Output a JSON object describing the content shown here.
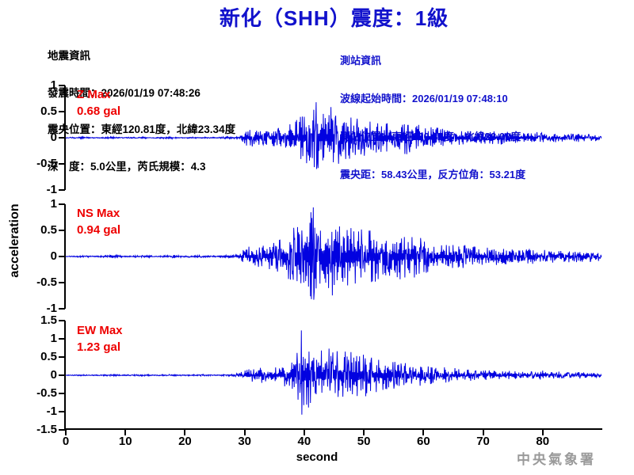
{
  "title": "新化（SHH）震度：1級",
  "earthquake_info": {
    "heading": "地震資訊",
    "origin_time": "發震時間：2026/01/19 07:48:26",
    "epicenter": "震央位置：東經120.81度，北緯23.34度",
    "depth_magnitude": "深　度：5.0公里，芮氏規模：4.3"
  },
  "station_info": {
    "heading": "測站資訊",
    "wave_start_time": "波線起始時間：2026/01/19 07:48:10",
    "station_location": "測站位置：東經120.35度，北緯23.02度",
    "distance_azimuth": "震央距：58.43公里，反方位角：53.21度"
  },
  "footer": {
    "agency": "中央氣象署"
  },
  "colors": {
    "title_blue": "#1212CC",
    "station_blue": "#1212CC",
    "trace_blue": "#0202E0",
    "max_red": "#EE0000",
    "axis_black": "#000000",
    "agency_gray": "#9A9A9A"
  },
  "chart_data": {
    "type": "line",
    "title": "新化（SHH）震度：1級",
    "xlabel": "second",
    "ylabel": "acceleration",
    "x_range": [
      0,
      90
    ],
    "x_ticks": [
      0,
      10,
      20,
      30,
      40,
      50,
      60,
      70,
      80
    ],
    "grid": false,
    "series": [
      {
        "name": "Z",
        "max_label": "Z Max",
        "max_text": "0.68 gal",
        "max_value": 0.68,
        "max_time_s": 42,
        "ylim": [
          -1,
          1
        ],
        "y_ticks": [
          1,
          0.5,
          0,
          -0.5,
          -1
        ],
        "envelope": [
          [
            0,
            0.006
          ],
          [
            3,
            0.02
          ],
          [
            4,
            0.008
          ],
          [
            8,
            0.022
          ],
          [
            9,
            0.008
          ],
          [
            13,
            0.02
          ],
          [
            14,
            0.008
          ],
          [
            18,
            0.022
          ],
          [
            19,
            0.008
          ],
          [
            23,
            0.02
          ],
          [
            24,
            0.01
          ],
          [
            28,
            0.025
          ],
          [
            29.3,
            0.04
          ],
          [
            29.8,
            0.15
          ],
          [
            31,
            0.17
          ],
          [
            33,
            0.15
          ],
          [
            35,
            0.18
          ],
          [
            37,
            0.25
          ],
          [
            39,
            0.38
          ],
          [
            40.5,
            0.5
          ],
          [
            42,
            0.68
          ],
          [
            43,
            0.48
          ],
          [
            44.5,
            0.6
          ],
          [
            46,
            0.5
          ],
          [
            47.5,
            0.42
          ],
          [
            49,
            0.45
          ],
          [
            51,
            0.35
          ],
          [
            53,
            0.3
          ],
          [
            55,
            0.26
          ],
          [
            57,
            0.32
          ],
          [
            59,
            0.28
          ],
          [
            61,
            0.22
          ],
          [
            63,
            0.18
          ],
          [
            65,
            0.15
          ],
          [
            67,
            0.13
          ],
          [
            69,
            0.12
          ],
          [
            71,
            0.12
          ],
          [
            73,
            0.13
          ],
          [
            75,
            0.1
          ],
          [
            77,
            0.09
          ],
          [
            79,
            0.11
          ],
          [
            81,
            0.08
          ],
          [
            83,
            0.09
          ],
          [
            85,
            0.08
          ],
          [
            87,
            0.08
          ],
          [
            89.5,
            0.06
          ]
        ]
      },
      {
        "name": "NS",
        "max_label": "NS Max",
        "max_text": "0.94 gal",
        "max_value": 0.94,
        "max_time_s": 41.5,
        "ylim": [
          -1,
          1
        ],
        "y_ticks": [
          1,
          0.5,
          0,
          -0.5,
          -1
        ],
        "envelope": [
          [
            0,
            0.006
          ],
          [
            3,
            0.02
          ],
          [
            5,
            0.01
          ],
          [
            8,
            0.03
          ],
          [
            10,
            0.012
          ],
          [
            13,
            0.025
          ],
          [
            15,
            0.012
          ],
          [
            18,
            0.03
          ],
          [
            20,
            0.015
          ],
          [
            23,
            0.025
          ],
          [
            25,
            0.015
          ],
          [
            28,
            0.03
          ],
          [
            29.3,
            0.06
          ],
          [
            29.8,
            0.16
          ],
          [
            31,
            0.2
          ],
          [
            33,
            0.22
          ],
          [
            35,
            0.28
          ],
          [
            36.5,
            0.38
          ],
          [
            38,
            0.55
          ],
          [
            39,
            0.65
          ],
          [
            40,
            0.58
          ],
          [
            41.5,
            0.94
          ],
          [
            42.5,
            0.72
          ],
          [
            44,
            0.88
          ],
          [
            45,
            0.75
          ],
          [
            46,
            0.62
          ],
          [
            47.5,
            0.58
          ],
          [
            48.5,
            0.72
          ],
          [
            50,
            0.55
          ],
          [
            51.5,
            0.58
          ],
          [
            53,
            0.45
          ],
          [
            54.5,
            0.38
          ],
          [
            56,
            0.48
          ],
          [
            57.5,
            0.38
          ],
          [
            59,
            0.42
          ],
          [
            60.5,
            0.32
          ],
          [
            62,
            0.26
          ],
          [
            64,
            0.22
          ],
          [
            66,
            0.24
          ],
          [
            68,
            0.2
          ],
          [
            70,
            0.17
          ],
          [
            72,
            0.19
          ],
          [
            74,
            0.15
          ],
          [
            76,
            0.13
          ],
          [
            78,
            0.15
          ],
          [
            80,
            0.13
          ],
          [
            82,
            0.13
          ],
          [
            84,
            0.11
          ],
          [
            86,
            0.13
          ],
          [
            88,
            0.11
          ],
          [
            89.5,
            0.09
          ]
        ]
      },
      {
        "name": "EW",
        "max_label": "EW Max",
        "max_text": "1.23 gal",
        "max_value": 1.23,
        "max_time_s": 39.5,
        "ylim": [
          -1.5,
          1.5
        ],
        "y_ticks": [
          1.5,
          1,
          0.5,
          0,
          -0.5,
          -1,
          -1.5
        ],
        "envelope": [
          [
            0,
            0.006
          ],
          [
            3,
            0.02
          ],
          [
            5,
            0.012
          ],
          [
            8,
            0.028
          ],
          [
            10,
            0.014
          ],
          [
            13,
            0.025
          ],
          [
            15,
            0.014
          ],
          [
            18,
            0.028
          ],
          [
            20,
            0.016
          ],
          [
            23,
            0.026
          ],
          [
            25,
            0.016
          ],
          [
            28,
            0.03
          ],
          [
            29.3,
            0.07
          ],
          [
            29.8,
            0.16
          ],
          [
            31,
            0.19
          ],
          [
            33,
            0.21
          ],
          [
            35,
            0.25
          ],
          [
            37,
            0.32
          ],
          [
            38.5,
            0.45
          ],
          [
            39.5,
            1.23
          ],
          [
            40.3,
            0.85
          ],
          [
            41,
            1.0
          ],
          [
            42,
            0.65
          ],
          [
            43,
            0.72
          ],
          [
            44,
            0.85
          ],
          [
            45,
            0.72
          ],
          [
            46,
            0.66
          ],
          [
            47,
            0.72
          ],
          [
            48,
            0.62
          ],
          [
            49,
            0.57
          ],
          [
            50,
            0.62
          ],
          [
            51,
            0.52
          ],
          [
            52,
            0.47
          ],
          [
            53.5,
            0.42
          ],
          [
            55,
            0.4
          ],
          [
            56.5,
            0.36
          ],
          [
            58,
            0.33
          ],
          [
            60,
            0.28
          ],
          [
            62,
            0.24
          ],
          [
            64,
            0.21
          ],
          [
            66,
            0.19
          ],
          [
            68,
            0.17
          ],
          [
            70,
            0.15
          ],
          [
            72,
            0.14
          ],
          [
            74,
            0.13
          ],
          [
            76,
            0.12
          ],
          [
            78,
            0.11
          ],
          [
            80,
            0.13
          ],
          [
            82,
            0.11
          ],
          [
            84,
            0.09
          ],
          [
            86,
            0.09
          ],
          [
            88,
            0.07
          ],
          [
            89.5,
            0.06
          ]
        ]
      }
    ]
  }
}
